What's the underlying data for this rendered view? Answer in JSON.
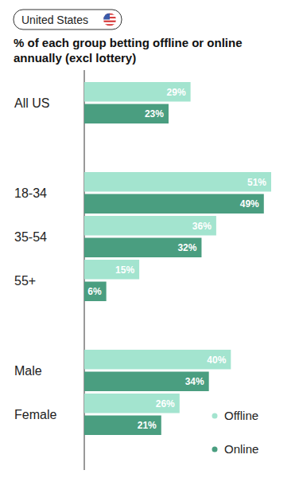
{
  "chart_data": {
    "type": "bar",
    "orientation": "horizontal",
    "title": "% of each group betting offline or online annually (excl lottery)",
    "annotations": [
      "United States"
    ],
    "categories": [
      "All US",
      "18-34",
      "35-54",
      "55+",
      "Male",
      "Female"
    ],
    "series": [
      {
        "name": "Offline",
        "color": "#a3e4cf",
        "values": [
          29,
          51,
          36,
          15,
          40,
          26
        ],
        "value_labels": [
          "29%",
          "51%",
          "36%",
          "15%",
          "40%",
          "26%"
        ]
      },
      {
        "name": "Online",
        "color": "#4a9e80",
        "values": [
          23,
          49,
          32,
          6,
          34,
          21
        ],
        "value_labels": [
          "23%",
          "49%",
          "32%",
          "6%",
          "34%",
          "21%"
        ]
      }
    ],
    "xlim": [
      0,
      51
    ],
    "tick_labels": "y",
    "data_labels": true,
    "grid": false,
    "legend": "bottom-right"
  }
}
